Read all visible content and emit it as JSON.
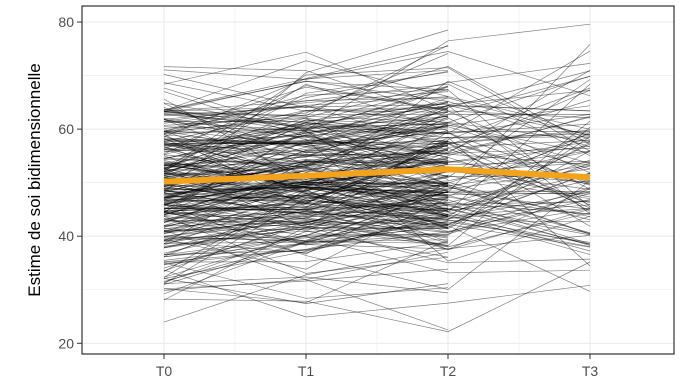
{
  "chart_data": {
    "type": "line",
    "xlabel": "",
    "ylabel": "Estime de soi bidimensionnelle",
    "categories": [
      "T0",
      "T1",
      "T2",
      "T3"
    ],
    "ylim": [
      18,
      83
    ],
    "yticks": [
      20,
      40,
      60,
      80
    ],
    "grid": true,
    "individual_lines": {
      "color": "#000000",
      "description_count": 300,
      "range_min": 19,
      "range_max": 80
    },
    "series": [
      {
        "values": [
          50.2,
          51.3,
          52.5,
          51.0
        ],
        "color": "#f2a31b"
      }
    ],
    "colors": {
      "panel_border": "#333333",
      "grid": "#ebebeb",
      "individual": "#000000",
      "mean": "#f2a31b"
    }
  }
}
